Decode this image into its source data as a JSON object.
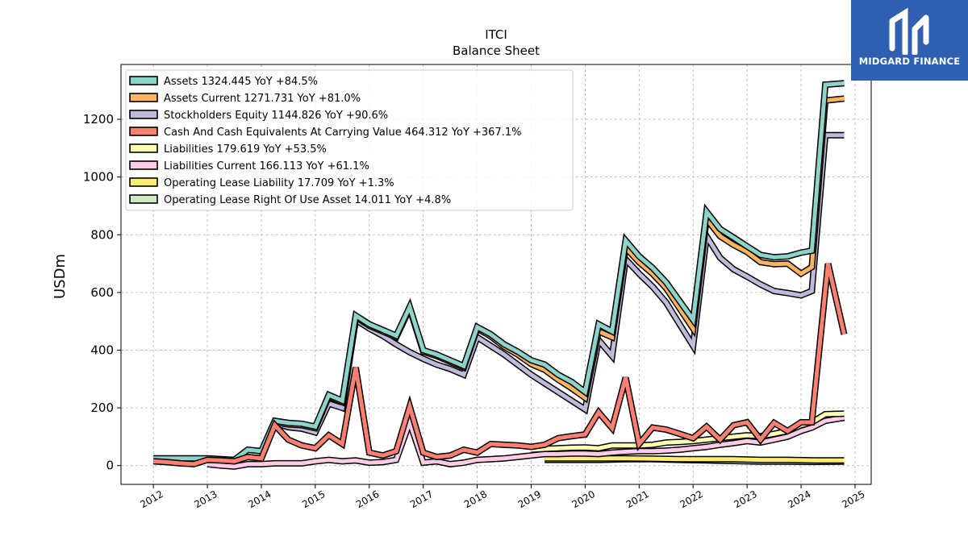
{
  "brand": {
    "name": "MIDGARD FINANCE",
    "bg": "#2f5fb0"
  },
  "chart_data": {
    "type": "line",
    "title": "ITCI",
    "subtitle": "Balance  Sheet",
    "ylabel": "USDm",
    "xlabel": "",
    "xlim": [
      2011.4,
      2025.3
    ],
    "ylim": [
      -65,
      1390
    ],
    "x_ticks": [
      "2012",
      "2013",
      "2014",
      "2015",
      "2016",
      "2017",
      "2018",
      "2019",
      "2020",
      "2021",
      "2022",
      "2023",
      "2024",
      "2025"
    ],
    "y_ticks": [
      0,
      200,
      400,
      600,
      800,
      1000,
      1200
    ],
    "grid": true,
    "legend_position": "upper-left",
    "series": [
      {
        "name": "Assets",
        "legend": "Assets  1324.445 YoY +84.5%",
        "color": "#8dd3c7",
        "points": [
          [
            2012.0,
            25
          ],
          [
            2012.25,
            25
          ],
          [
            2012.5,
            25
          ],
          [
            2012.75,
            25
          ],
          [
            2013.0,
            25
          ],
          [
            2013.25,
            22
          ],
          [
            2013.5,
            20
          ],
          [
            2013.75,
            55
          ],
          [
            2014.0,
            50
          ],
          [
            2014.25,
            155
          ],
          [
            2014.5,
            148
          ],
          [
            2014.75,
            145
          ],
          [
            2015.0,
            135
          ],
          [
            2015.25,
            245
          ],
          [
            2015.5,
            225
          ],
          [
            2015.75,
            520
          ],
          [
            2016.0,
            490
          ],
          [
            2016.25,
            470
          ],
          [
            2016.5,
            450
          ],
          [
            2016.75,
            550
          ],
          [
            2017.0,
            400
          ],
          [
            2017.25,
            385
          ],
          [
            2017.5,
            365
          ],
          [
            2017.75,
            345
          ],
          [
            2018.0,
            480
          ],
          [
            2018.25,
            455
          ],
          [
            2018.5,
            420
          ],
          [
            2018.75,
            395
          ],
          [
            2019.0,
            365
          ],
          [
            2019.25,
            350
          ],
          [
            2019.5,
            315
          ],
          [
            2019.75,
            290
          ],
          [
            2020.0,
            255
          ],
          [
            2020.25,
            490
          ],
          [
            2020.5,
            465
          ],
          [
            2020.75,
            780
          ],
          [
            2021.0,
            725
          ],
          [
            2021.25,
            685
          ],
          [
            2021.5,
            635
          ],
          [
            2021.75,
            570
          ],
          [
            2022.0,
            505
          ],
          [
            2022.25,
            880
          ],
          [
            2022.5,
            820
          ],
          [
            2022.75,
            790
          ],
          [
            2023.0,
            760
          ],
          [
            2023.25,
            730
          ],
          [
            2023.5,
            722
          ],
          [
            2023.75,
            725
          ],
          [
            2024.0,
            738
          ],
          [
            2024.2,
            745
          ],
          [
            2024.45,
            1320
          ],
          [
            2024.8,
            1325
          ]
        ]
      },
      {
        "name": "Assets Current",
        "legend": "Assets Current  1271.731 YoY +81.0%",
        "color": "#fdb462",
        "points": [
          [
            2014.0,
            45
          ],
          [
            2014.25,
            150
          ],
          [
            2014.5,
            143
          ],
          [
            2014.75,
            140
          ],
          [
            2015.0,
            130
          ],
          [
            2015.25,
            240
          ],
          [
            2015.5,
            220
          ],
          [
            2015.75,
            515
          ],
          [
            2016.0,
            485
          ],
          [
            2016.25,
            465
          ],
          [
            2016.5,
            445
          ],
          [
            2016.75,
            545
          ],
          [
            2017.0,
            395
          ],
          [
            2017.25,
            380
          ],
          [
            2017.5,
            360
          ],
          [
            2017.75,
            340
          ],
          [
            2018.0,
            475
          ],
          [
            2018.25,
            448
          ],
          [
            2018.5,
            412
          ],
          [
            2018.75,
            385
          ],
          [
            2019.0,
            352
          ],
          [
            2019.25,
            332
          ],
          [
            2019.5,
            298
          ],
          [
            2019.75,
            268
          ],
          [
            2020.0,
            235
          ],
          [
            2020.25,
            465
          ],
          [
            2020.5,
            445
          ],
          [
            2020.75,
            755
          ],
          [
            2021.0,
            705
          ],
          [
            2021.25,
            665
          ],
          [
            2021.5,
            615
          ],
          [
            2021.75,
            545
          ],
          [
            2022.0,
            475
          ],
          [
            2022.25,
            855
          ],
          [
            2022.5,
            795
          ],
          [
            2022.75,
            765
          ],
          [
            2023.0,
            740
          ],
          [
            2023.25,
            705
          ],
          [
            2023.5,
            698
          ],
          [
            2023.75,
            700
          ],
          [
            2024.0,
            665
          ],
          [
            2024.2,
            688
          ],
          [
            2024.45,
            1265
          ],
          [
            2024.8,
            1272
          ]
        ]
      },
      {
        "name": "Stockholders Equity",
        "legend": "Stockholders Equity  1144.826 YoY +90.6%",
        "color": "#bebada",
        "points": [
          [
            2014.0,
            40
          ],
          [
            2014.25,
            148
          ],
          [
            2014.5,
            133
          ],
          [
            2014.75,
            128
          ],
          [
            2015.0,
            115
          ],
          [
            2015.25,
            215
          ],
          [
            2015.5,
            200
          ],
          [
            2015.75,
            505
          ],
          [
            2016.0,
            475
          ],
          [
            2016.25,
            450
          ],
          [
            2016.5,
            420
          ],
          [
            2016.75,
            393
          ],
          [
            2017.0,
            370
          ],
          [
            2017.25,
            350
          ],
          [
            2017.5,
            335
          ],
          [
            2017.75,
            315
          ],
          [
            2018.0,
            445
          ],
          [
            2018.25,
            415
          ],
          [
            2018.5,
            385
          ],
          [
            2018.75,
            350
          ],
          [
            2019.0,
            315
          ],
          [
            2019.25,
            285
          ],
          [
            2019.5,
            255
          ],
          [
            2019.75,
            225
          ],
          [
            2020.0,
            195
          ],
          [
            2020.25,
            435
          ],
          [
            2020.5,
            380
          ],
          [
            2020.75,
            715
          ],
          [
            2021.0,
            665
          ],
          [
            2021.25,
            620
          ],
          [
            2021.5,
            565
          ],
          [
            2021.75,
            490
          ],
          [
            2022.0,
            415
          ],
          [
            2022.25,
            795
          ],
          [
            2022.5,
            720
          ],
          [
            2022.75,
            680
          ],
          [
            2023.0,
            655
          ],
          [
            2023.25,
            628
          ],
          [
            2023.5,
            605
          ],
          [
            2023.75,
            598
          ],
          [
            2024.0,
            590
          ],
          [
            2024.2,
            605
          ],
          [
            2024.45,
            1145
          ],
          [
            2024.8,
            1145
          ]
        ]
      },
      {
        "name": "Cash And Cash Equivalents At Carrying Value",
        "legend": "Cash And Cash Equivalents At Carrying Value  464.312 YoY +367.1%",
        "color": "#fb8072",
        "points": [
          [
            2012.0,
            15
          ],
          [
            2012.25,
            12
          ],
          [
            2012.5,
            8
          ],
          [
            2012.75,
            5
          ],
          [
            2013.0,
            20
          ],
          [
            2013.25,
            18
          ],
          [
            2013.5,
            15
          ],
          [
            2013.75,
            30
          ],
          [
            2014.0,
            25
          ],
          [
            2014.25,
            140
          ],
          [
            2014.5,
            90
          ],
          [
            2014.75,
            70
          ],
          [
            2015.0,
            60
          ],
          [
            2015.25,
            105
          ],
          [
            2015.5,
            75
          ],
          [
            2015.75,
            340
          ],
          [
            2016.0,
            45
          ],
          [
            2016.25,
            35
          ],
          [
            2016.5,
            50
          ],
          [
            2016.75,
            205
          ],
          [
            2017.0,
            45
          ],
          [
            2017.25,
            30
          ],
          [
            2017.5,
            35
          ],
          [
            2017.75,
            55
          ],
          [
            2018.0,
            45
          ],
          [
            2018.25,
            75
          ],
          [
            2018.5,
            72
          ],
          [
            2018.75,
            70
          ],
          [
            2019.0,
            65
          ],
          [
            2019.25,
            72
          ],
          [
            2019.5,
            95
          ],
          [
            2019.75,
            102
          ],
          [
            2020.0,
            108
          ],
          [
            2020.25,
            185
          ],
          [
            2020.5,
            130
          ],
          [
            2020.75,
            305
          ],
          [
            2021.0,
            75
          ],
          [
            2021.25,
            132
          ],
          [
            2021.5,
            125
          ],
          [
            2021.75,
            110
          ],
          [
            2022.0,
            95
          ],
          [
            2022.25,
            135
          ],
          [
            2022.5,
            90
          ],
          [
            2022.75,
            140
          ],
          [
            2023.0,
            150
          ],
          [
            2023.25,
            90
          ],
          [
            2023.5,
            148
          ],
          [
            2023.75,
            120
          ],
          [
            2024.0,
            150
          ],
          [
            2024.2,
            150
          ],
          [
            2024.5,
            700
          ],
          [
            2024.8,
            455
          ]
        ]
      },
      {
        "name": "Liabilities",
        "legend": "Liabilities  179.619 YoY +53.5%",
        "color": "#ffffb3",
        "points": [
          [
            2019.0,
            55
          ],
          [
            2019.25,
            58
          ],
          [
            2019.5,
            60
          ],
          [
            2019.75,
            62
          ],
          [
            2020.0,
            63
          ],
          [
            2020.25,
            60
          ],
          [
            2020.5,
            70
          ],
          [
            2020.75,
            70
          ],
          [
            2021.0,
            70
          ],
          [
            2021.25,
            72
          ],
          [
            2021.5,
            80
          ],
          [
            2021.75,
            82
          ],
          [
            2022.0,
            85
          ],
          [
            2022.25,
            90
          ],
          [
            2022.5,
            95
          ],
          [
            2022.75,
            100
          ],
          [
            2023.0,
            105
          ],
          [
            2023.25,
            102
          ],
          [
            2023.5,
            110
          ],
          [
            2023.75,
            120
          ],
          [
            2024.0,
            140
          ],
          [
            2024.2,
            150
          ],
          [
            2024.45,
            178
          ],
          [
            2024.8,
            180
          ]
        ]
      },
      {
        "name": "Liabilities Current",
        "legend": "Liabilities Current  166.113 YoY +61.1%",
        "color": "#fccde5",
        "points": [
          [
            2013.0,
            5
          ],
          [
            2013.25,
            0
          ],
          [
            2013.5,
            -3
          ],
          [
            2013.75,
            5
          ],
          [
            2014.0,
            5
          ],
          [
            2014.25,
            8
          ],
          [
            2014.5,
            8
          ],
          [
            2014.75,
            8
          ],
          [
            2015.0,
            15
          ],
          [
            2015.25,
            20
          ],
          [
            2015.5,
            15
          ],
          [
            2015.75,
            18
          ],
          [
            2016.0,
            10
          ],
          [
            2016.25,
            12
          ],
          [
            2016.5,
            20
          ],
          [
            2016.75,
            150
          ],
          [
            2017.0,
            10
          ],
          [
            2017.25,
            15
          ],
          [
            2017.5,
            5
          ],
          [
            2017.75,
            10
          ],
          [
            2018.0,
            20
          ],
          [
            2018.25,
            22
          ],
          [
            2018.5,
            25
          ],
          [
            2018.75,
            30
          ],
          [
            2019.0,
            35
          ],
          [
            2019.25,
            40
          ],
          [
            2019.5,
            40
          ],
          [
            2019.75,
            42
          ],
          [
            2020.0,
            42
          ],
          [
            2020.25,
            40
          ],
          [
            2020.5,
            45
          ],
          [
            2020.75,
            48
          ],
          [
            2021.0,
            50
          ],
          [
            2021.25,
            50
          ],
          [
            2021.5,
            52
          ],
          [
            2021.75,
            55
          ],
          [
            2022.0,
            60
          ],
          [
            2022.25,
            65
          ],
          [
            2022.5,
            72
          ],
          [
            2022.75,
            78
          ],
          [
            2023.0,
            85
          ],
          [
            2023.25,
            80
          ],
          [
            2023.5,
            90
          ],
          [
            2023.75,
            100
          ],
          [
            2024.0,
            120
          ],
          [
            2024.2,
            132
          ],
          [
            2024.45,
            155
          ],
          [
            2024.8,
            166
          ]
        ]
      },
      {
        "name": "Operating Lease Liability",
        "legend": "Operating Lease Liability  17.709 YoY +1.3%",
        "color": "#ffed6f",
        "points": [
          [
            2019.25,
            25
          ],
          [
            2019.75,
            25
          ],
          [
            2020.25,
            25
          ],
          [
            2020.75,
            25
          ],
          [
            2021.25,
            24
          ],
          [
            2021.75,
            22
          ],
          [
            2022.25,
            22
          ],
          [
            2022.75,
            22
          ],
          [
            2023.25,
            20
          ],
          [
            2023.75,
            20
          ],
          [
            2024.25,
            18
          ],
          [
            2024.8,
            18
          ]
        ]
      },
      {
        "name": "Operating Lease Right Of Use Asset",
        "legend": "Operating Lease Right Of Use Asset  14.011 YoY +4.8%",
        "color": "#ccebc5",
        "points": [
          [
            2019.25,
            20
          ],
          [
            2019.75,
            20
          ],
          [
            2020.25,
            20
          ],
          [
            2020.75,
            22
          ],
          [
            2021.25,
            22
          ],
          [
            2021.75,
            20
          ],
          [
            2022.25,
            18
          ],
          [
            2022.75,
            16
          ],
          [
            2023.25,
            14
          ],
          [
            2023.75,
            14
          ],
          [
            2024.25,
            13
          ],
          [
            2024.8,
            14
          ]
        ]
      }
    ]
  }
}
